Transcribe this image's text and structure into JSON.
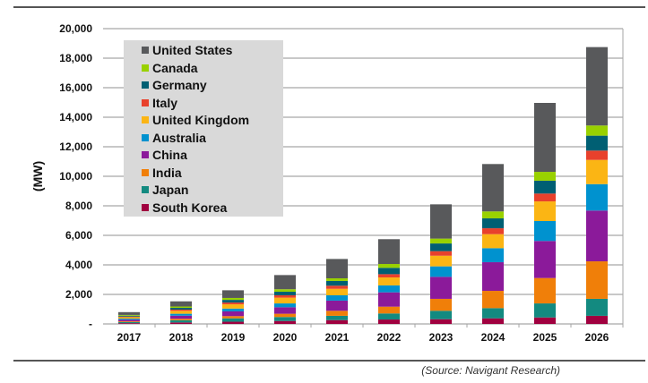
{
  "chart_data": {
    "type": "bar",
    "stacked": true,
    "title": "",
    "xlabel": "",
    "ylabel": "(MW)",
    "ylim": [
      0,
      20000
    ],
    "yticks": [
      0,
      2000,
      4000,
      6000,
      8000,
      10000,
      12000,
      14000,
      16000,
      18000,
      20000
    ],
    "ytick_labels": [
      "-",
      "2,000",
      "4,000",
      "6,000",
      "8,000",
      "10,000",
      "12,000",
      "14,000",
      "16,000",
      "18,000",
      "20,000"
    ],
    "grid": true,
    "legend_placement": "top-left",
    "categories": [
      "2017",
      "2018",
      "2019",
      "2020",
      "2021",
      "2022",
      "2023",
      "2024",
      "2025",
      "2026"
    ],
    "series": [
      {
        "name": "South Korea",
        "color": "#a0003f",
        "values": [
          50,
          100,
          150,
          200,
          260,
          300,
          320,
          380,
          440,
          550
        ]
      },
      {
        "name": "Japan",
        "color": "#138a80",
        "values": [
          80,
          150,
          230,
          270,
          290,
          410,
          570,
          690,
          950,
          1150
        ]
      },
      {
        "name": "India",
        "color": "#f07f09",
        "values": [
          50,
          100,
          150,
          220,
          340,
          460,
          810,
          1170,
          1720,
          2540
        ]
      },
      {
        "name": "China",
        "color": "#8b1a9a",
        "values": [
          110,
          210,
          320,
          440,
          690,
          970,
          1490,
          1940,
          2510,
          3440
        ]
      },
      {
        "name": "Australia",
        "color": "#0092cf",
        "values": [
          70,
          130,
          190,
          260,
          360,
          470,
          710,
          950,
          1350,
          1790
        ]
      },
      {
        "name": "United Kingdom",
        "color": "#fbb514",
        "values": [
          100,
          200,
          290,
          390,
          440,
          540,
          720,
          950,
          1330,
          1640
        ]
      },
      {
        "name": "Italy",
        "color": "#e8412c",
        "values": [
          40,
          80,
          120,
          160,
          210,
          220,
          310,
          400,
          530,
          630
        ]
      },
      {
        "name": "Germany",
        "color": "#005f73",
        "values": [
          60,
          120,
          180,
          240,
          320,
          430,
          520,
          670,
          870,
          1010
        ]
      },
      {
        "name": "Canada",
        "color": "#99d100",
        "values": [
          50,
          90,
          130,
          170,
          180,
          260,
          330,
          470,
          600,
          690
        ]
      },
      {
        "name": "United States",
        "color": "#58595b",
        "values": [
          190,
          350,
          520,
          960,
          1310,
          1680,
          2320,
          3210,
          4670,
          5310
        ]
      }
    ],
    "legend_order": [
      "United States",
      "Canada",
      "Germany",
      "Italy",
      "United Kingdom",
      "Australia",
      "China",
      "India",
      "Japan",
      "South Korea"
    ]
  },
  "source": "(Source: Navigant Research)"
}
